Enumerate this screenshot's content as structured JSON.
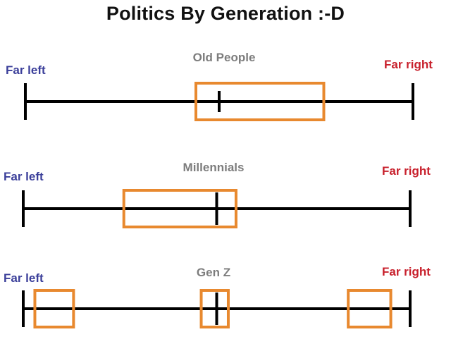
{
  "title": "Politics By Generation :-D",
  "colors": {
    "left_label": "#3b3f9a",
    "right_label": "#c8202c",
    "generation_label": "#7d7d7d",
    "box": "#e8892f",
    "line": "#000000"
  },
  "spectrum": {
    "left_label": "Far left",
    "right_label": "Far right",
    "range": [
      0,
      1
    ]
  },
  "rows": [
    {
      "label": "Old People",
      "boxes": [
        {
          "from": 0.44,
          "to": 0.77
        }
      ],
      "median": 0.5
    },
    {
      "label": "Millennials",
      "boxes": [
        {
          "from": 0.26,
          "to": 0.55
        }
      ],
      "median": 0.5
    },
    {
      "label": "Gen Z",
      "boxes": [
        {
          "from": 0.03,
          "to": 0.13
        },
        {
          "from": 0.46,
          "to": 0.53
        },
        {
          "from": 0.84,
          "to": 0.95
        }
      ],
      "median": 0.5
    }
  ]
}
